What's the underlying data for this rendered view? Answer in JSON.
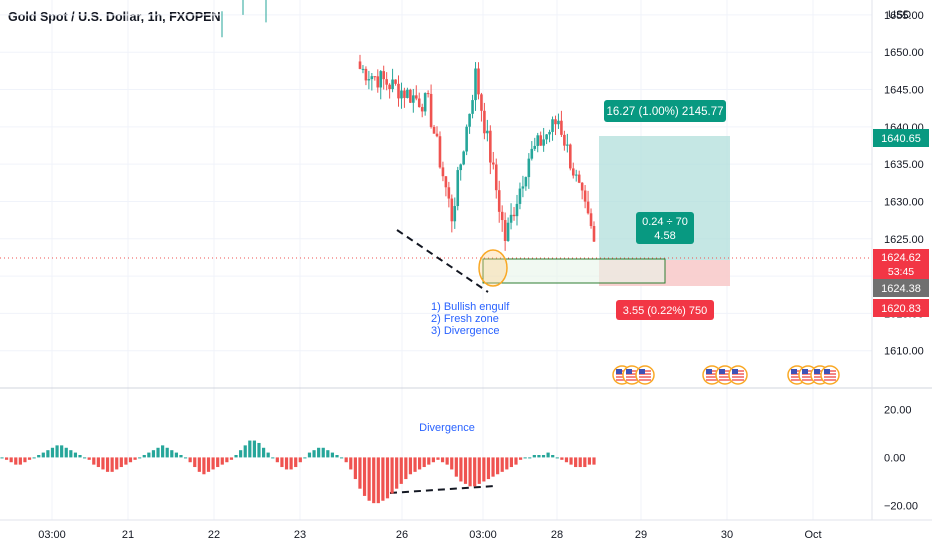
{
  "symbol_title": "Gold Spot / U.S. Dollar, 1h, FXOPEN",
  "currency": "USD",
  "colors": {
    "up": "#26a69a",
    "down": "#ef5350",
    "annotation": "#2962ff",
    "profit_zone": "#b2dfdb",
    "loss_zone": "#f8c8c8",
    "price_line": "#ef5350",
    "badge_target": "#089981",
    "badge_stop": "#f23645",
    "badge_entry": "#707070"
  },
  "chart_data": [
    {
      "type": "candlestick",
      "pane": "price",
      "ylim": [
        1605,
        1657
      ],
      "y_ticks": [
        "1655.00",
        "1650.00",
        "1645.00",
        "1640.00",
        "1635.00",
        "1630.00",
        "1625.00",
        "1620.00",
        "1615.00",
        "1610.00"
      ],
      "x_ticks": [
        "03:00",
        "21",
        "22",
        "23",
        "26",
        "03:00",
        "28",
        "29",
        "30",
        "Oct"
      ],
      "current_price": "1624.62",
      "countdown": "53:45",
      "entry_price": "1624.38",
      "target_price": "1640.65",
      "stop_price": "1620.83",
      "position": {
        "type": "long",
        "target_label": "16.27 (1.00%) 2145.77",
        "stop_label": "3.55 (0.22%) 750",
        "ratio_label": "0.24 ÷ 70",
        "rr_label": "4.58"
      },
      "annotations": [
        "1) Bullish engulf",
        "2) Fresh zone",
        "3) Divergence"
      ],
      "candle_segments": [
        {
          "from": 1648,
          "to": 1643,
          "n": 24
        },
        {
          "from": 1643,
          "to": 1628,
          "n": 8
        },
        {
          "from": 1628,
          "to": 1647,
          "n": 8
        },
        {
          "from": 1647,
          "to": 1625,
          "n": 10
        },
        {
          "from": 1625,
          "to": 1636,
          "n": 8
        },
        {
          "from": 1636,
          "to": 1641,
          "n": 10
        },
        {
          "from": 1641,
          "to": 1624.6,
          "n": 12
        }
      ]
    },
    {
      "type": "histogram",
      "pane": "oscillator",
      "title": "Divergence",
      "y_ticks": [
        "20.00",
        "0.00",
        "−20.00"
      ],
      "ylim": [
        -26,
        28
      ],
      "values": [
        0,
        -1,
        -2,
        -3,
        -3,
        -2,
        -1,
        0,
        1,
        2,
        3,
        4,
        5,
        5,
        4,
        3,
        2,
        1,
        0,
        -1,
        -3,
        -4,
        -5,
        -6,
        -6,
        -5,
        -4,
        -3,
        -2,
        -1,
        0,
        1,
        2,
        3,
        4,
        5,
        4,
        3,
        2,
        1,
        0,
        -2,
        -4,
        -6,
        -7,
        -6,
        -5,
        -4,
        -3,
        -2,
        -1,
        1,
        3,
        5,
        7,
        7,
        6,
        4,
        2,
        0,
        -2,
        -4,
        -5,
        -5,
        -4,
        -2,
        0,
        2,
        3,
        4,
        4,
        3,
        2,
        1,
        0,
        -2,
        -5,
        -9,
        -13,
        -16,
        -18,
        -19,
        -19,
        -18,
        -17,
        -15,
        -13,
        -11,
        -9,
        -7,
        -6,
        -5,
        -4,
        -3,
        -2,
        -1,
        -2,
        -3,
        -5,
        -8,
        -10,
        -11,
        -12,
        -12,
        -11,
        -10,
        -9,
        -8,
        -7,
        -6,
        -5,
        -4,
        -3,
        -1,
        0,
        0,
        1,
        1,
        1,
        2,
        1,
        0,
        -1,
        -2,
        -3,
        -4,
        -4,
        -4,
        -3,
        -3
      ]
    }
  ]
}
